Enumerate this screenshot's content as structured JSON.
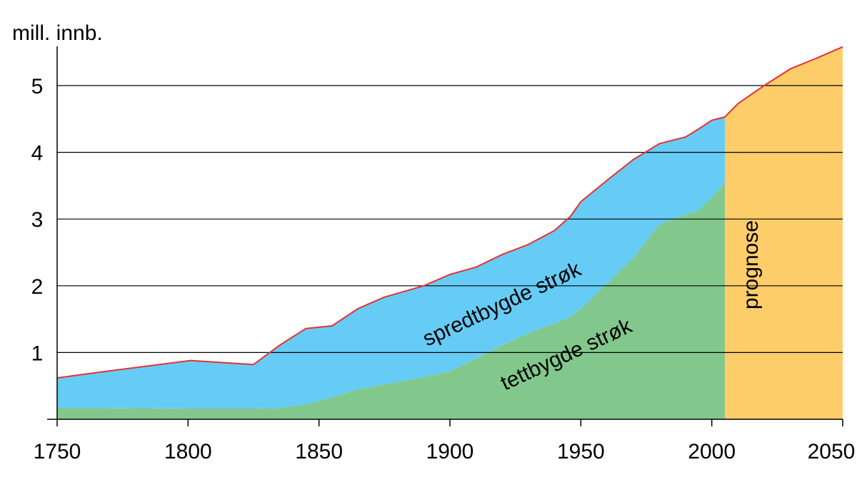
{
  "chart_data": {
    "type": "area",
    "ylabel": "mill. innb.",
    "xlim": [
      1750,
      2050
    ],
    "ylim": [
      0,
      5.6
    ],
    "x_ticks": [
      1750,
      1800,
      1850,
      1900,
      1950,
      2000,
      2050
    ],
    "y_ticks": [
      1,
      2,
      3,
      4,
      5
    ],
    "grid": "horizontal",
    "series": [
      {
        "name": "tettbygde strøk",
        "color": "#82c88c",
        "x": [
          1750,
          1769,
          1801,
          1825,
          1835,
          1845,
          1855,
          1865,
          1875,
          1890,
          1900,
          1910,
          1920,
          1930,
          1940,
          1946,
          1950,
          1960,
          1970,
          1980,
          1990,
          1995,
          2000,
          2005
        ],
        "values": [
          0.17,
          0.17,
          0.16,
          0.16,
          0.17,
          0.22,
          0.33,
          0.45,
          0.52,
          0.63,
          0.72,
          0.91,
          1.11,
          1.29,
          1.44,
          1.53,
          1.66,
          2.03,
          2.42,
          2.92,
          3.07,
          3.13,
          3.33,
          3.55
        ]
      },
      {
        "name": "spredtbygde strøk",
        "color": "#66ccf5",
        "x": [
          1750,
          1769,
          1801,
          1825,
          1835,
          1845,
          1855,
          1865,
          1875,
          1890,
          1900,
          1910,
          1920,
          1930,
          1940,
          1946,
          1950,
          1960,
          1970,
          1980,
          1990,
          1995,
          2000,
          2005
        ],
        "values": [
          0.45,
          0.55,
          0.72,
          0.66,
          0.94,
          1.14,
          1.07,
          1.21,
          1.31,
          1.37,
          1.45,
          1.37,
          1.36,
          1.33,
          1.39,
          1.51,
          1.6,
          1.55,
          1.47,
          1.21,
          1.16,
          1.22,
          1.15,
          0.98
        ]
      },
      {
        "name": "prognose",
        "color": "#fdcd6a",
        "x": [
          2005,
          2010,
          2020,
          2030,
          2040,
          2050
        ],
        "values": [
          4.53,
          4.73,
          5.0,
          5.25,
          5.41,
          5.58
        ]
      }
    ],
    "total_line": {
      "color": "#e53130",
      "x": [
        1750,
        1769,
        1801,
        1825,
        1835,
        1845,
        1855,
        1865,
        1875,
        1890,
        1900,
        1910,
        1920,
        1930,
        1940,
        1946,
        1950,
        1960,
        1970,
        1980,
        1990,
        1995,
        2000,
        2005,
        2010,
        2020,
        2030,
        2040,
        2050
      ],
      "values": [
        0.62,
        0.72,
        0.88,
        0.82,
        1.11,
        1.36,
        1.4,
        1.66,
        1.83,
        2.0,
        2.17,
        2.28,
        2.47,
        2.62,
        2.83,
        3.04,
        3.26,
        3.58,
        3.89,
        4.13,
        4.23,
        4.35,
        4.48,
        4.53,
        4.73,
        5.0,
        5.25,
        5.41,
        5.58
      ]
    },
    "labels": {
      "spredt": "spredtbygde strøk",
      "tett": "tettbygde strøk",
      "prognose": "prognose"
    }
  }
}
